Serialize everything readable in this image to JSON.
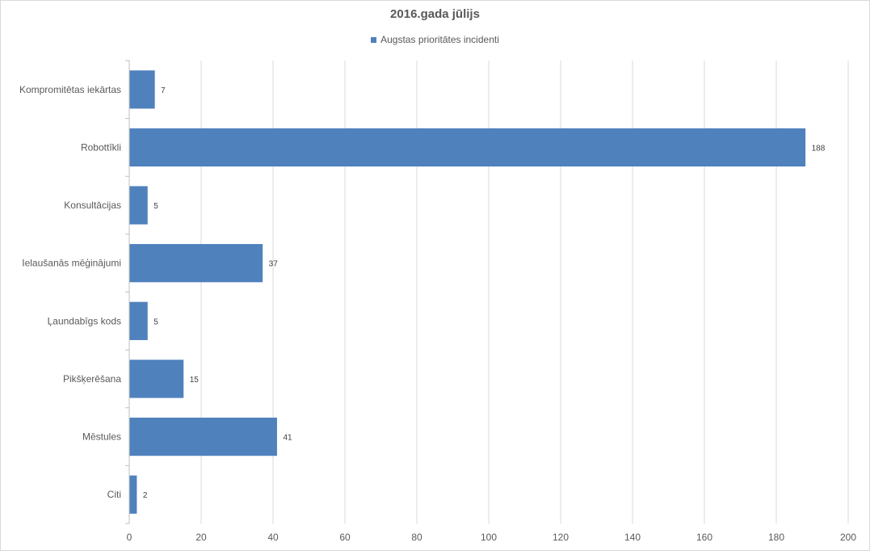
{
  "chart_data": {
    "type": "bar",
    "orientation": "horizontal",
    "title": "2016.gada jūlijs",
    "categories": [
      "Kompromitētas iekārtas",
      "Robottīkli",
      "Konsultācijas",
      "Ielaušanās mēģinājumi",
      "Ļaundabīgs kods",
      "Pikšķerēšana",
      "Mēstules",
      "Citi"
    ],
    "series": [
      {
        "name": "Augstas prioritātes incidenti",
        "values": [
          7,
          188,
          5,
          37,
          5,
          15,
          41,
          2
        ],
        "color": "#4f81bd"
      }
    ],
    "xlim": [
      0,
      200
    ],
    "xticks": [
      0,
      20,
      40,
      60,
      80,
      100,
      120,
      140,
      160,
      180,
      200
    ],
    "grid": true,
    "legend_position": "top",
    "data_labels": true
  }
}
